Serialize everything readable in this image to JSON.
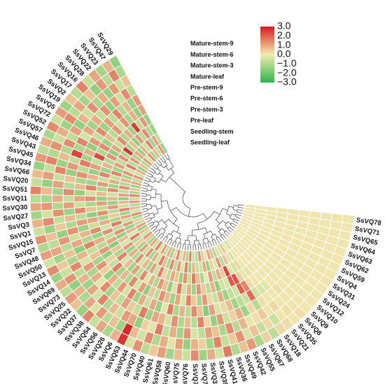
{
  "chart_data": {
    "type": "heatmap",
    "layout": "circular",
    "genes": [
      "SsVQ78",
      "SsVQ71",
      "SsVQ65",
      "SsVQ64",
      "SsVQ63",
      "SsVQ62",
      "SsVQ59",
      "SsVQ4",
      "SsVQ31",
      "SsVQ24",
      "SsVQ12",
      "SsVQ10",
      "SsVQ9",
      "SsVQ8",
      "SsVQ35",
      "SsVQ21",
      "SsVQ18",
      "SsVQ68",
      "SsVQ67",
      "SsVQ55",
      "SsVQ42",
      "SsVQ49",
      "SsVQ36",
      "SsVQ41",
      "SsVQ39",
      "SsVQ33",
      "SsVQ77",
      "SsVQ74",
      "SsVQ76",
      "SsVQ75",
      "SsVQ60",
      "SsVQ58",
      "SsVQ61",
      "SsVQ40",
      "SsVQ70",
      "SsVQ44",
      "SsVQ53",
      "SsVQ6",
      "SsVQ26",
      "SsVQ56",
      "SsVQ54",
      "SsVQ38",
      "SsVQ37",
      "SsVQ32",
      "SsVQ25",
      "SsVQ73",
      "SsVQ69",
      "SsVQ14",
      "SsVQ13",
      "SsVQ50",
      "SsVQ48",
      "SsVQ7",
      "SsVQ15",
      "SsVQ1",
      "SsVQ3",
      "SsVQ27",
      "SsVQ30",
      "SsVQ11",
      "SsVQ51",
      "SsVQ20",
      "SsVQ66",
      "SsVQ34",
      "SsVQ45",
      "SsVQ43",
      "SsVQ46",
      "SsVQ57",
      "SsVQ52",
      "SsVQ72",
      "SsVQ5",
      "SsVQ19",
      "SsVQ2",
      "SsVQ17",
      "SsVQ16",
      "SsVQ28",
      "SsVQ22",
      "SsVQ23",
      "SsVQ47",
      "SsVQ29"
    ],
    "tracks": [
      "Mature-stem-9",
      "Mature-stem-6",
      "Mature-stem-3",
      "Mature-leaf",
      "Pre-stem-9",
      "Pre-stem-6",
      "Pre-stem-3",
      "Pre-leaf",
      "Seedling-stem",
      "Seedling-leaf"
    ],
    "color_scale": {
      "ticks": [
        "3.0",
        "2.0",
        "1.0",
        "0.0",
        "−1.0",
        "−2.0",
        "−3.0"
      ],
      "min": -3,
      "max": 3,
      "colors": [
        "#2eb34b",
        "#f1ecb2",
        "#d7191c"
      ]
    },
    "values": [
      [
        0.1,
        0.1,
        0.1,
        0.1,
        0.1,
        0.1,
        0.1,
        0.1,
        0.1,
        0.1
      ],
      [
        0.1,
        0.1,
        0.1,
        0.1,
        0.1,
        0.1,
        0.1,
        0.1,
        0.1,
        0.1
      ],
      [
        0.1,
        0.1,
        0.1,
        0.1,
        0.1,
        0.1,
        0.1,
        0.1,
        0.1,
        0.1
      ],
      [
        0.1,
        0.1,
        0.1,
        0.1,
        0.1,
        0.1,
        0.1,
        0.1,
        0.1,
        0.1
      ],
      [
        0.1,
        0.1,
        0.1,
        0.1,
        0.1,
        0.1,
        0.1,
        0.1,
        0.1,
        0.1
      ],
      [
        0.1,
        0.1,
        0.1,
        0.1,
        0.1,
        0.1,
        0.1,
        0.1,
        0.1,
        0.1
      ],
      [
        0.1,
        0.1,
        0.1,
        0.1,
        0.1,
        0.1,
        0.1,
        0.1,
        0.1,
        0.1
      ],
      [
        0.1,
        0.1,
        0.1,
        0.1,
        0.1,
        0.1,
        0.1,
        0.1,
        0.1,
        0.1
      ],
      [
        0.1,
        0.1,
        0.1,
        0.1,
        0.1,
        0.1,
        0.1,
        0.1,
        0.1,
        0.1
      ],
      [
        0.1,
        0.1,
        0.1,
        0.1,
        0.1,
        0.1,
        0.1,
        0.1,
        0.1,
        0.1
      ],
      [
        0.1,
        0.1,
        0.1,
        0.1,
        0.1,
        0.1,
        0.1,
        0.1,
        0.1,
        0.1
      ],
      [
        0.1,
        0.1,
        0.1,
        0.1,
        0.1,
        0.1,
        0.1,
        0.1,
        0.1,
        0.1
      ],
      [
        0.1,
        0.1,
        0.1,
        0.1,
        0.1,
        0.1,
        0.1,
        0.1,
        0.1,
        0.1
      ],
      [
        0.2,
        0.1,
        0.1,
        0.2,
        0.1,
        0.1,
        0.1,
        0.1,
        0.1,
        0.1
      ],
      [
        0.1,
        0.2,
        0.1,
        0.1,
        -0.3,
        0.1,
        0.1,
        0.1,
        0.1,
        0.1
      ],
      [
        0.2,
        0.1,
        0.3,
        0.1,
        -0.4,
        0.1,
        0.2,
        0.1,
        0.1,
        -0.5
      ],
      [
        0.3,
        -0.6,
        0.1,
        0.2,
        -0.5,
        0.2,
        -0.2,
        0.3,
        -0.4,
        0.1
      ],
      [
        -0.8,
        0.3,
        0.5,
        -0.9,
        1.8,
        1.5,
        0.4,
        -0.5,
        0.2,
        0.6
      ],
      [
        0.4,
        -0.7,
        0.2,
        0.3,
        -0.6,
        2.0,
        2.2,
        -0.3,
        0.6,
        -0.4
      ],
      [
        -1.1,
        0.6,
        -0.2,
        -1.3,
        -0.8,
        -0.5,
        2.1,
        2.4,
        -0.9,
        0.3
      ],
      [
        1.2,
        -0.4,
        0.8,
        0.9,
        -1.2,
        -0.7,
        -0.4,
        0.5,
        1.3,
        -1.0
      ],
      [
        0.6,
        1.3,
        -0.9,
        0.4,
        0.7,
        -1.3,
        -0.5,
        0.9,
        -0.3,
        0.7
      ],
      [
        -1.0,
        0.5,
        1.4,
        -0.6,
        0.3,
        0.9,
        -1.5,
        -0.8,
        0.4,
        1.1
      ],
      [
        1.6,
        -0.7,
        -1.1,
        1.2,
        -0.4,
        -0.6,
        0.8,
        1.2,
        -1.4,
        -0.2
      ],
      [
        -0.5,
        1.5,
        0.6,
        -1.4,
        1.1,
        0.3,
        -0.9,
        -0.2,
        1.0,
        0.5
      ],
      [
        0.9,
        -1.2,
        1.1,
        0.3,
        -1.6,
        1.2,
        0.5,
        -1.1,
        -0.6,
        1.3
      ],
      [
        -1.3,
        0.4,
        -0.8,
        1.5,
        0.6,
        -1.1,
        1.3,
        0.7,
        -0.7,
        -0.9
      ],
      [
        1.4,
        0.8,
        -0.4,
        -0.9,
        1.4,
        0.5,
        -1.2,
        1.6,
        0.8,
        -0.6
      ],
      [
        -0.6,
        -1.4,
        1.3,
        0.7,
        -0.9,
        1.5,
        0.9,
        -0.7,
        -1.3,
        1.4
      ],
      [
        0.7,
        1.1,
        -1.2,
        -1.0,
        0.8,
        -0.4,
        -0.6,
        1.3,
        1.5,
        -1.1
      ],
      [
        -1.2,
        -0.3,
        0.9,
        1.3,
        -1.1,
        1.0,
        1.6,
        -1.4,
        -0.4,
        0.8
      ],
      [
        1.1,
        0.9,
        -0.7,
        -0.5,
        1.6,
        -1.3,
        0.3,
        0.6,
        1.2,
        -0.5
      ],
      [
        0.5,
        -1.0,
        1.6,
        0.8,
        -0.3,
        0.7,
        -1.4,
        1.0,
        -0.8,
        1.5
      ],
      [
        -0.9,
        1.4,
        -0.3,
        1.0,
        -1.4,
        1.3,
        0.6,
        -0.9,
        1.4,
        0.4
      ],
      [
        1.3,
        -0.5,
        0.4,
        -1.3,
        1.0,
        -0.8,
        1.2,
        0.4,
        -1.0,
        -1.2
      ],
      [
        -0.4,
        0.7,
        -1.5,
        1.6,
        -0.6,
        0.6,
        -1.0,
        1.5,
        0.7,
        0.9
      ],
      [
        2.6,
        2.8,
        1.0,
        -0.7,
        0.9,
        -1.5,
        0.8,
        -0.6,
        1.6,
        -0.8
      ],
      [
        0.8,
        -1.3,
        1.2,
        0.5,
        -1.3,
        1.1,
        -0.3,
        1.1,
        -0.5,
        1.2
      ],
      [
        -1.1,
        0.6,
        -0.6,
        1.1,
        1.5,
        -0.4,
        1.4,
        -1.2,
        0.9,
        -0.4
      ],
      [
        1.0,
        -0.9,
        0.7,
        -0.8,
        -0.5,
        1.4,
        -0.8,
        0.8,
        -1.1,
        1.6
      ],
      [
        -0.7,
        1.2,
        -1.0,
        0.6,
        1.2,
        -1.0,
        1.1,
        -0.5,
        1.3,
        -0.7
      ],
      [
        1.5,
        -0.4,
        1.5,
        -1.2,
        -0.8,
        0.8,
        -1.3,
        1.4,
        -0.6,
        1.0
      ],
      [
        -1.4,
        1.0,
        -0.5,
        1.4,
        0.9,
        -1.2,
        0.7,
        -1.0,
        1.1,
        -1.3
      ],
      [
        0.6,
        -1.1,
        1.0,
        -0.3,
        -1.5,
        1.6,
        -0.4,
        0.9,
        -1.2,
        0.6
      ],
      [
        1.2,
        0.8,
        -1.3,
        0.9,
        0.4,
        -0.7,
        1.5,
        -1.3,
        0.5,
        1.3
      ],
      [
        -0.8,
        -1.5,
        0.8,
        -1.1,
        1.3,
        0.4,
        -1.1,
        1.2,
        -0.9,
        -0.6
      ],
      [
        0.9,
        1.3,
        -0.8,
        1.2,
        -1.2,
        -1.4,
        0.6,
        -0.4,
        1.6,
        0.7
      ],
      [
        -1.3,
        -0.6,
        1.4,
        -0.4,
        0.6,
        1.2,
        -1.6,
        0.7,
        -0.3,
        -1.4
      ],
      [
        1.4,
        0.5,
        -1.1,
        0.8,
        -0.7,
        -0.9,
        1.0,
        -1.5,
        0.8,
        1.1
      ],
      [
        -0.5,
        -1.2,
        0.6,
        -1.5,
        1.5,
        0.9,
        -0.7,
        1.3,
        -1.4,
        -0.8
      ],
      [
        1.1,
        1.0,
        -0.9,
        1.0,
        -1.0,
        -1.3,
        1.3,
        -0.8,
        1.2,
        0.5
      ],
      [
        -1.0,
        -0.8,
        1.2,
        -0.6,
        0.8,
        1.4,
        -0.5,
        1.6,
        -0.7,
        -1.2
      ],
      [
        1.3,
        0.6,
        -1.4,
        1.3,
        -1.3,
        -0.6,
        0.9,
        -1.1,
        1.0,
        1.4
      ],
      [
        -0.6,
        -1.3,
        0.5,
        -1.0,
        1.1,
        1.0,
        -1.2,
        0.5,
        -1.3,
        -0.5
      ],
      [
        0.8,
        1.4,
        -0.7,
        0.7,
        -0.8,
        -1.5,
        1.4,
        -0.9,
        1.5,
        0.8
      ],
      [
        -1.2,
        -0.5,
        1.3,
        -1.3,
        1.4,
        0.6,
        -0.8,
        1.2,
        -0.6,
        -1.0
      ],
      [
        1.0,
        1.2,
        -1.0,
        1.1,
        -0.6,
        -1.1,
        1.1,
        -1.4,
        0.7,
        1.2
      ],
      [
        -0.9,
        -1.1,
        0.9,
        -0.7,
        1.0,
        1.3,
        -1.4,
        0.8,
        -1.5,
        -0.7
      ],
      [
        1.5,
        0.7,
        -1.2,
        1.4,
        -1.4,
        -0.5,
        0.7,
        -0.6,
        1.1,
        1.5
      ],
      [
        -0.7,
        -1.4,
        1.1,
        -0.9,
        0.7,
        1.5,
        -1.0,
        1.4,
        -0.8,
        -1.1
      ],
      [
        0.7,
        1.1,
        -0.6,
        0.6,
        -1.1,
        -1.2,
        1.2,
        -1.2,
        1.4,
        0.6
      ],
      [
        -1.4,
        -0.7,
        1.5,
        -1.4,
        1.3,
        0.8,
        -0.6,
        0.9,
        -1.0,
        -1.3
      ],
      [
        1.2,
        1.5,
        -1.3,
        1.2,
        -0.9,
        -1.4,
        1.5,
        -0.7,
        0.9,
        1.0
      ],
      [
        -0.8,
        -1.0,
        0.7,
        -0.8,
        1.6,
        1.1,
        -1.3,
        1.5,
        -1.2,
        -0.9
      ],
      [
        0.9,
        1.3,
        -1.0,
        2.4,
        -1.2,
        -0.7,
        0.8,
        -1.3,
        1.3,
        1.3
      ],
      [
        -1.1,
        -0.6,
        1.4,
        -1.1,
        0.9,
        2.3,
        -0.9,
        1.1,
        -0.5,
        -0.6
      ],
      [
        1.4,
        0.9,
        -0.8,
        1.5,
        -1.5,
        -1.0,
        1.3,
        -0.8,
        1.6,
        0.9
      ],
      [
        -0.6,
        -1.3,
        1.1,
        -0.5,
        1.2,
        1.4,
        -1.5,
        1.3,
        -0.9,
        -1.4
      ],
      [
        1.1,
        1.4,
        -1.5,
        1.0,
        -0.7,
        -1.3,
        1.0,
        -1.0,
        1.2,
        0.7
      ],
      [
        -1.3,
        -0.8,
        0.8,
        -1.2,
        1.4,
        0.7,
        -0.7,
        2.6,
        -1.1,
        -1.0
      ],
      [
        0.6,
        1.0,
        -0.6,
        0.9,
        -1.3,
        -0.9,
        1.4,
        -1.2,
        1.0,
        1.2
      ],
      [
        -0.9,
        -1.2,
        1.3,
        -0.7,
        1.1,
        1.2,
        -1.1,
        0.7,
        -1.4,
        -0.5
      ],
      [
        1.5,
        0.6,
        -1.1,
        1.3,
        -0.8,
        -0.6,
        0.9,
        -1.5,
        0.8,
        1.4
      ],
      [
        -0.7,
        -1.5,
        0.9,
        -1.4,
        1.5,
        1.3,
        -1.3,
        1.2,
        -0.6,
        -1.2
      ],
      [
        1.0,
        1.2,
        -1.4,
        1.1,
        -1.0,
        -1.2,
        2.5,
        -0.9,
        1.5,
        0.8
      ],
      [
        -1.2,
        -0.9,
        1.2,
        -0.6,
        0.8,
        0.9,
        -0.8,
        1.4,
        -1.3,
        -0.7
      ],
      [
        0.8,
        1.5,
        -0.7,
        1.4,
        -1.4,
        -1.5,
        1.2,
        -1.1,
        1.1,
        1.3
      ],
      [
        -1.5,
        -1.1,
        0.6,
        -0.9,
        1.2,
        1.1,
        -1.4,
        -1.3,
        -0.8,
        -1.5
      ]
    ]
  }
}
